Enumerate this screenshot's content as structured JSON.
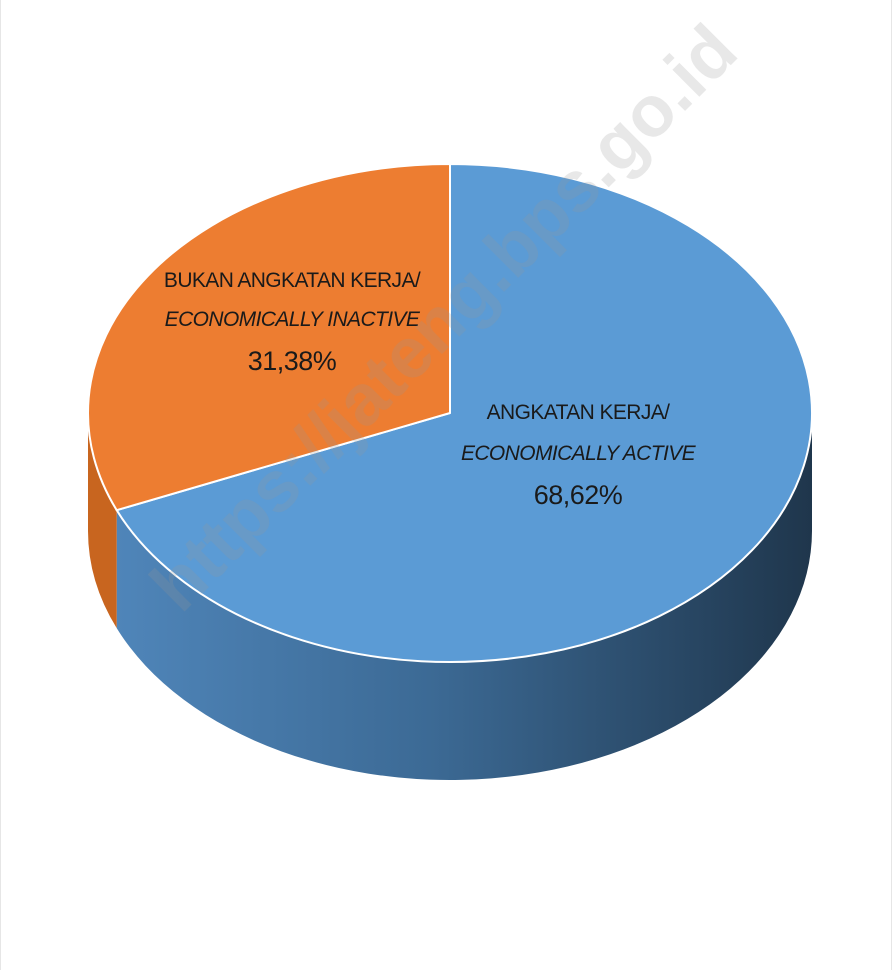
{
  "watermark": "https://jateng.bps.go.id",
  "colors": {
    "active": "#5b9bd5",
    "active_side_light": "#4f85b9",
    "active_side_dark": "#213a52",
    "inactive": "#ed7d31",
    "inactive_side": "#c8651f"
  },
  "chart_data": {
    "type": "pie",
    "three_d": true,
    "title": "",
    "series": [
      {
        "values": [
          68.62,
          31.38
        ],
        "categories": [
          "ANGKATAN KERJA/ ECONOMICALLY ACTIVE",
          "BUKAN ANGKATAN KERJA/ ECONOMICALLY INACTIVE"
        ]
      }
    ],
    "slices": [
      {
        "key": "active",
        "label_id": "ANGKATAN KERJA/",
        "label_en": "ECONOMICALLY ACTIVE",
        "value": 68.62,
        "value_label": "68,62%",
        "color": "#5b9bd5"
      },
      {
        "key": "inactive",
        "label_id": "BUKAN ANGKATAN KERJA/",
        "label_en": "ECONOMICALLY INACTIVE",
        "value": 31.38,
        "value_label": "31,38%",
        "color": "#ed7d31"
      }
    ],
    "legend": "none"
  }
}
